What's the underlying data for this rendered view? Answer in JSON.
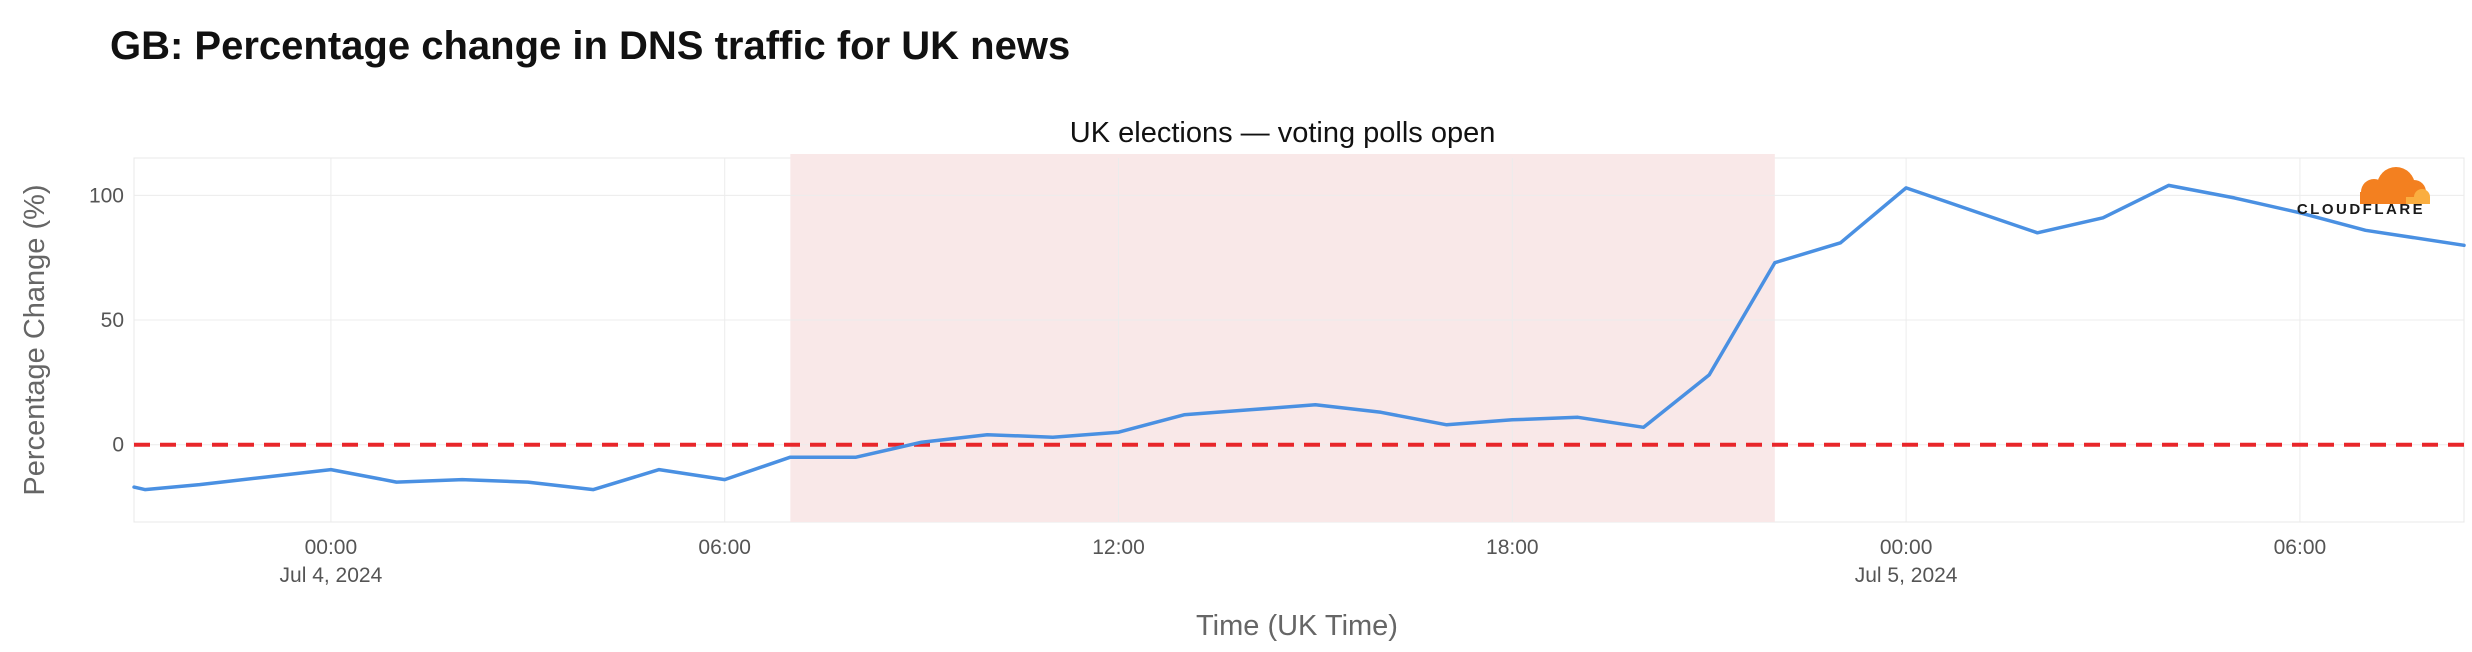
{
  "page": {
    "title": "GB: Percentage change in DNS traffic for UK news"
  },
  "logo": {
    "text": "CLOUDFLARE",
    "icon": "cloud-icon",
    "colors": [
      "#f38020",
      "#faae40"
    ]
  },
  "chart_data": {
    "type": "line",
    "title": "",
    "xlabel": "Time (UK Time)",
    "ylabel": "Percentage Change (%)",
    "xlim": [
      "2024-07-03T21:00",
      "2024-07-05T08:30"
    ],
    "ylim": [
      -31,
      115
    ],
    "grid": true,
    "x_ticks": [
      {
        "value": "2024-07-04T00:00",
        "label": "00:00",
        "sublabel": "Jul 4, 2024"
      },
      {
        "value": "2024-07-04T06:00",
        "label": "06:00",
        "sublabel": ""
      },
      {
        "value": "2024-07-04T12:00",
        "label": "12:00",
        "sublabel": ""
      },
      {
        "value": "2024-07-04T18:00",
        "label": "18:00",
        "sublabel": ""
      },
      {
        "value": "2024-07-05T00:00",
        "label": "00:00",
        "sublabel": "Jul 5, 2024"
      },
      {
        "value": "2024-07-05T06:00",
        "label": "06:00",
        "sublabel": ""
      }
    ],
    "y_ticks": [
      0,
      50,
      100
    ],
    "series": [
      {
        "name": "",
        "color": "#4a90e2",
        "x": [
          "2024-07-03T21:00",
          "2024-07-03T21:10",
          "2024-07-03T22:00",
          "2024-07-03T23:00",
          "2024-07-04T00:00",
          "2024-07-04T01:00",
          "2024-07-04T02:00",
          "2024-07-04T03:00",
          "2024-07-04T04:00",
          "2024-07-04T05:00",
          "2024-07-04T06:00",
          "2024-07-04T07:00",
          "2024-07-04T08:00",
          "2024-07-04T09:00",
          "2024-07-04T10:00",
          "2024-07-04T11:00",
          "2024-07-04T12:00",
          "2024-07-04T13:00",
          "2024-07-04T14:00",
          "2024-07-04T15:00",
          "2024-07-04T16:00",
          "2024-07-04T17:00",
          "2024-07-04T18:00",
          "2024-07-04T19:00",
          "2024-07-04T20:00",
          "2024-07-04T21:00",
          "2024-07-04T22:00",
          "2024-07-04T23:00",
          "2024-07-05T00:00",
          "2024-07-05T01:00",
          "2024-07-05T02:00",
          "2024-07-05T03:00",
          "2024-07-05T04:00",
          "2024-07-05T05:00",
          "2024-07-05T06:00",
          "2024-07-05T07:00",
          "2024-07-05T08:30"
        ],
        "y": [
          -17,
          -18,
          -16,
          -13,
          -10,
          -15,
          -14,
          -15,
          -18,
          -10,
          -14,
          -5,
          -5,
          1,
          4,
          3,
          5,
          12,
          14,
          16,
          13,
          8,
          10,
          11,
          7,
          28,
          73,
          81,
          103,
          94,
          85,
          91,
          104,
          99,
          93,
          86,
          80
        ]
      }
    ],
    "reference_lines": [
      {
        "axis": "y",
        "value": 0,
        "color": "#e8262a",
        "style": "dashed"
      }
    ],
    "shaded_regions": [
      {
        "label": "UK elections — voting polls open",
        "x0": "2024-07-04T07:00",
        "x1": "2024-07-04T22:00",
        "color": "#f9e8e8"
      }
    ]
  }
}
